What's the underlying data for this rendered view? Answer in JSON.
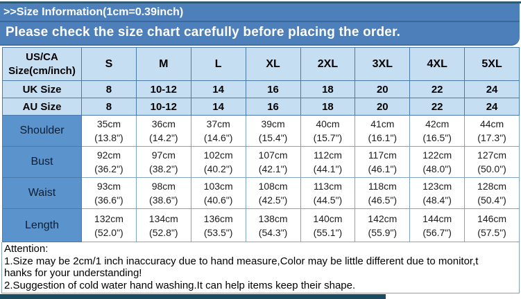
{
  "header": {
    "title": ">>Size Information(1cm=0.39inch)",
    "subtitle": "Please check the size chart carefully before placing the order."
  },
  "table": {
    "us_header": {
      "line1": "US/CA",
      "line2": "Size(cm/inch)"
    },
    "sizes": [
      "S",
      "M",
      "L",
      "XL",
      "2XL",
      "3XL",
      "4XL",
      "5XL"
    ],
    "uk_row": {
      "label": "UK Size",
      "values": [
        "8",
        "10-12",
        "14",
        "16",
        "18",
        "20",
        "22",
        "24"
      ]
    },
    "au_row": {
      "label": "AU Size",
      "values": [
        "8",
        "10-12",
        "14",
        "16",
        "18",
        "20",
        "22",
        "24"
      ]
    },
    "measurements": [
      {
        "label": "Shoulder",
        "values": [
          {
            "cm": "35cm",
            "inch": "(13.8\")"
          },
          {
            "cm": "36cm",
            "inch": "(14.2\")"
          },
          {
            "cm": "37cm",
            "inch": "(14.6\")"
          },
          {
            "cm": "39cm",
            "inch": "(15.4\")"
          },
          {
            "cm": "40cm",
            "inch": "(15.7\")"
          },
          {
            "cm": "41cm",
            "inch": "(16.1\")"
          },
          {
            "cm": "42cm",
            "inch": "(16.5\")"
          },
          {
            "cm": "44cm",
            "inch": "(17.3\")"
          }
        ]
      },
      {
        "label": "Bust",
        "values": [
          {
            "cm": "92cm",
            "inch": "(36.2\")"
          },
          {
            "cm": "97cm",
            "inch": "(38.2\")"
          },
          {
            "cm": "102cm",
            "inch": "(40.2\")"
          },
          {
            "cm": "107cm",
            "inch": "(42.1\")"
          },
          {
            "cm": "112cm",
            "inch": "(44.1\")"
          },
          {
            "cm": "117cm",
            "inch": "(46.1\")"
          },
          {
            "cm": "122cm",
            "inch": "(48.0\")"
          },
          {
            "cm": "127cm",
            "inch": "(50.0\")"
          }
        ]
      },
      {
        "label": "Waist",
        "values": [
          {
            "cm": "93cm",
            "inch": "(36.6\")"
          },
          {
            "cm": "98cm",
            "inch": "(38.6\")"
          },
          {
            "cm": "103cm",
            "inch": "(40.6\")"
          },
          {
            "cm": "108cm",
            "inch": "(42.5\")"
          },
          {
            "cm": "113cm",
            "inch": "(44.5\")"
          },
          {
            "cm": "118cm",
            "inch": "(46.5\")"
          },
          {
            "cm": "123cm",
            "inch": "(48.4\")"
          },
          {
            "cm": "128cm",
            "inch": "(50.4\")"
          }
        ]
      },
      {
        "label": "Length",
        "values": [
          {
            "cm": "132cm",
            "inch": "(52.0\")"
          },
          {
            "cm": "134cm",
            "inch": "(52.8\")"
          },
          {
            "cm": "136cm",
            "inch": "(53.5\")"
          },
          {
            "cm": "138cm",
            "inch": "(54.3\")"
          },
          {
            "cm": "140cm",
            "inch": "(55.1\")"
          },
          {
            "cm": "142cm",
            "inch": "(55.9\")"
          },
          {
            "cm": "144cm",
            "inch": "(56.7\")"
          },
          {
            "cm": "146cm",
            "inch": "(57.5\")"
          }
        ]
      }
    ]
  },
  "attention": {
    "lines": [
      "Attention:",
      "1.Size may be 2cm/1 inch inaccuracy due to hand measure,Color may be little different due to monitor,t",
      "hanks for your understanding!",
      "2.Suggestion of cold water hand washing.It can help items keep their shape."
    ]
  },
  "colors": {
    "banner_blue": "#4d80bb",
    "header_cell_blue": "#c5def2",
    "row_label_blue": "#5b93cd",
    "dark_section_bar": "#1d4c61",
    "table_border": "#4a79ab"
  }
}
